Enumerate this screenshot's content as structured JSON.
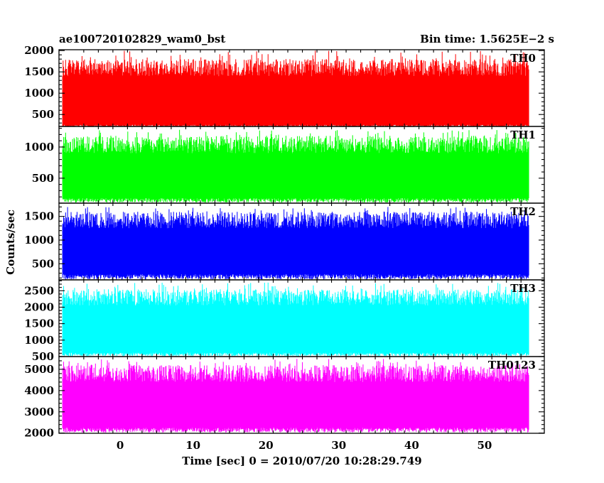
{
  "header": {
    "title_left": "ae100720102829_wam0_bst",
    "title_right": "Bin time: 1.5625E−2 s"
  },
  "chart_data": {
    "type": "line",
    "xlabel": "Time [sec] 0 = 2010/07/20 10:28:29.749",
    "ylabel": "Counts/sec",
    "xlim": [
      -8.4,
      58.2
    ],
    "x_range_data": [
      -7.9,
      56.1
    ],
    "x_ticks": [
      0,
      10,
      20,
      30,
      40,
      50
    ],
    "bin_time_s": 0.015625,
    "panels": [
      {
        "name": "TH0",
        "color": "#ff0000",
        "ylim": [
          220,
          2020
        ],
        "yticks": [
          500,
          1000,
          1500,
          2000
        ],
        "low": [
          200,
          260
        ],
        "high": [
          1400,
          1800
        ],
        "peak": 2000
      },
      {
        "name": "TH1",
        "color": "#00ff00",
        "ylim": [
          100,
          1330
        ],
        "yticks": [
          500,
          1000
        ],
        "low": [
          110,
          180
        ],
        "high": [
          900,
          1180
        ],
        "peak": 1280
      },
      {
        "name": "TH2",
        "color": "#0000ff",
        "ylim": [
          160,
          1780
        ],
        "yticks": [
          500,
          1000,
          1500
        ],
        "low": [
          170,
          280
        ],
        "high": [
          1250,
          1600
        ],
        "peak": 1700
      },
      {
        "name": "TH3",
        "color": "#00ffff",
        "ylim": [
          500,
          2830
        ],
        "yticks": [
          500,
          1000,
          1500,
          2000,
          2500
        ],
        "low": [
          510,
          620
        ],
        "high": [
          2050,
          2550
        ],
        "peak": 2750
      },
      {
        "name": "TH0123",
        "color": "#ff00ff",
        "ylim": [
          1990,
          5600
        ],
        "yticks": [
          2000,
          3000,
          4000,
          5000
        ],
        "low": [
          2030,
          2250
        ],
        "high": [
          4400,
          5200
        ],
        "peak": 5500
      }
    ]
  }
}
